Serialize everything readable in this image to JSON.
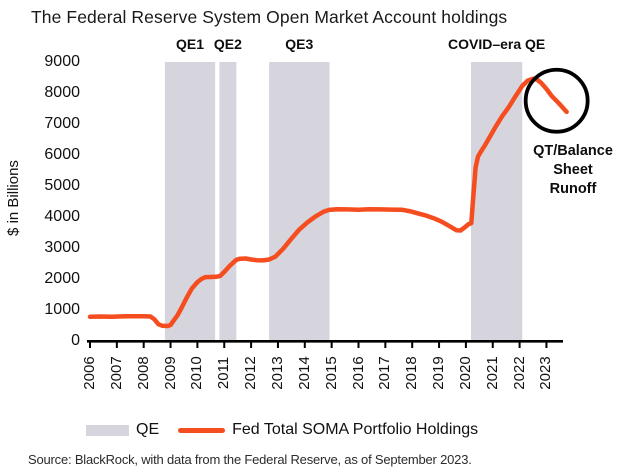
{
  "title": "The Federal Reserve System Open Market Account holdings",
  "y_axis": {
    "label": "$ in Billions"
  },
  "legend": {
    "qe_label": "QE",
    "line_label": "Fed Total SOMA Portfolio Holdings"
  },
  "source": "Source: BlackRock, with data from the Federal Reserve, as of September 2023.",
  "colors": {
    "line": "#F54D1F",
    "band": "#D6D5DD",
    "axis": "#000000",
    "circle": "#000000",
    "text": "#1a1a1a"
  },
  "chart_data": {
    "type": "line",
    "title": "The Federal Reserve System Open Market Account holdings",
    "xlabel": "",
    "ylabel": "$ in Billions",
    "unit": "$ in Billions",
    "ylim": [
      0,
      9000
    ],
    "x_range": [
      2006,
      2023.9
    ],
    "grid": false,
    "legend_position": "bottom",
    "y_ticks": [
      0,
      1000,
      2000,
      3000,
      4000,
      5000,
      6000,
      7000,
      8000,
      9000
    ],
    "x_ticks": [
      2006,
      2007,
      2008,
      2009,
      2010,
      2011,
      2012,
      2013,
      2014,
      2015,
      2016,
      2017,
      2018,
      2019,
      2020,
      2021,
      2022,
      2023
    ],
    "bands": [
      {
        "label": "QE1",
        "start": 2008.79,
        "end": 2010.66
      },
      {
        "label": "QE2",
        "start": 2010.82,
        "end": 2011.45
      },
      {
        "label": "QE3",
        "start": 2012.67,
        "end": 2014.92
      },
      {
        "label": "COVID–era QE",
        "start": 2020.19,
        "end": 2022.1
      }
    ],
    "series": [
      {
        "name": "Fed Total SOMA Portfolio Holdings",
        "points": [
          [
            2006.0,
            780
          ],
          [
            2006.4,
            790
          ],
          [
            2006.8,
            785
          ],
          [
            2007.2,
            795
          ],
          [
            2007.6,
            800
          ],
          [
            2008.0,
            800
          ],
          [
            2008.25,
            790
          ],
          [
            2008.4,
            700
          ],
          [
            2008.55,
            540
          ],
          [
            2008.7,
            490
          ],
          [
            2008.9,
            485
          ],
          [
            2009.0,
            520
          ],
          [
            2009.1,
            640
          ],
          [
            2009.25,
            820
          ],
          [
            2009.4,
            1050
          ],
          [
            2009.6,
            1400
          ],
          [
            2009.8,
            1700
          ],
          [
            2010.0,
            1900
          ],
          [
            2010.15,
            2000
          ],
          [
            2010.3,
            2060
          ],
          [
            2010.5,
            2065
          ],
          [
            2010.7,
            2070
          ],
          [
            2010.85,
            2100
          ],
          [
            2011.0,
            2230
          ],
          [
            2011.2,
            2420
          ],
          [
            2011.45,
            2620
          ],
          [
            2011.6,
            2655
          ],
          [
            2011.8,
            2660
          ],
          [
            2012.0,
            2630
          ],
          [
            2012.2,
            2605
          ],
          [
            2012.45,
            2600
          ],
          [
            2012.67,
            2630
          ],
          [
            2012.9,
            2720
          ],
          [
            2013.2,
            2980
          ],
          [
            2013.5,
            3300
          ],
          [
            2013.8,
            3600
          ],
          [
            2014.1,
            3830
          ],
          [
            2014.4,
            4020
          ],
          [
            2014.7,
            4170
          ],
          [
            2014.9,
            4230
          ],
          [
            2015.2,
            4250
          ],
          [
            2015.6,
            4245
          ],
          [
            2016.0,
            4235
          ],
          [
            2016.4,
            4250
          ],
          [
            2016.8,
            4245
          ],
          [
            2017.2,
            4240
          ],
          [
            2017.6,
            4235
          ],
          [
            2017.9,
            4190
          ],
          [
            2018.2,
            4120
          ],
          [
            2018.5,
            4050
          ],
          [
            2018.8,
            3960
          ],
          [
            2019.1,
            3850
          ],
          [
            2019.4,
            3700
          ],
          [
            2019.65,
            3570
          ],
          [
            2019.8,
            3565
          ],
          [
            2019.95,
            3660
          ],
          [
            2020.1,
            3770
          ],
          [
            2020.2,
            3800
          ],
          [
            2020.28,
            4700
          ],
          [
            2020.36,
            5600
          ],
          [
            2020.45,
            5950
          ],
          [
            2020.55,
            6100
          ],
          [
            2020.7,
            6300
          ],
          [
            2020.9,
            6600
          ],
          [
            2021.1,
            6900
          ],
          [
            2021.35,
            7250
          ],
          [
            2021.6,
            7550
          ],
          [
            2021.85,
            7900
          ],
          [
            2022.1,
            8230
          ],
          [
            2022.3,
            8400
          ],
          [
            2022.5,
            8460
          ],
          [
            2022.65,
            8430
          ],
          [
            2022.8,
            8330
          ],
          [
            2023.0,
            8130
          ],
          [
            2023.2,
            7900
          ],
          [
            2023.45,
            7680
          ],
          [
            2023.75,
            7390
          ]
        ]
      }
    ],
    "annotations": {
      "circle": {
        "center_year": 2023.38,
        "center_value": 7750,
        "label": "QT/Balance Sheet Runoff",
        "label_lines": [
          "QT/Balance",
          "Sheet",
          "Runoff"
        ]
      }
    }
  }
}
